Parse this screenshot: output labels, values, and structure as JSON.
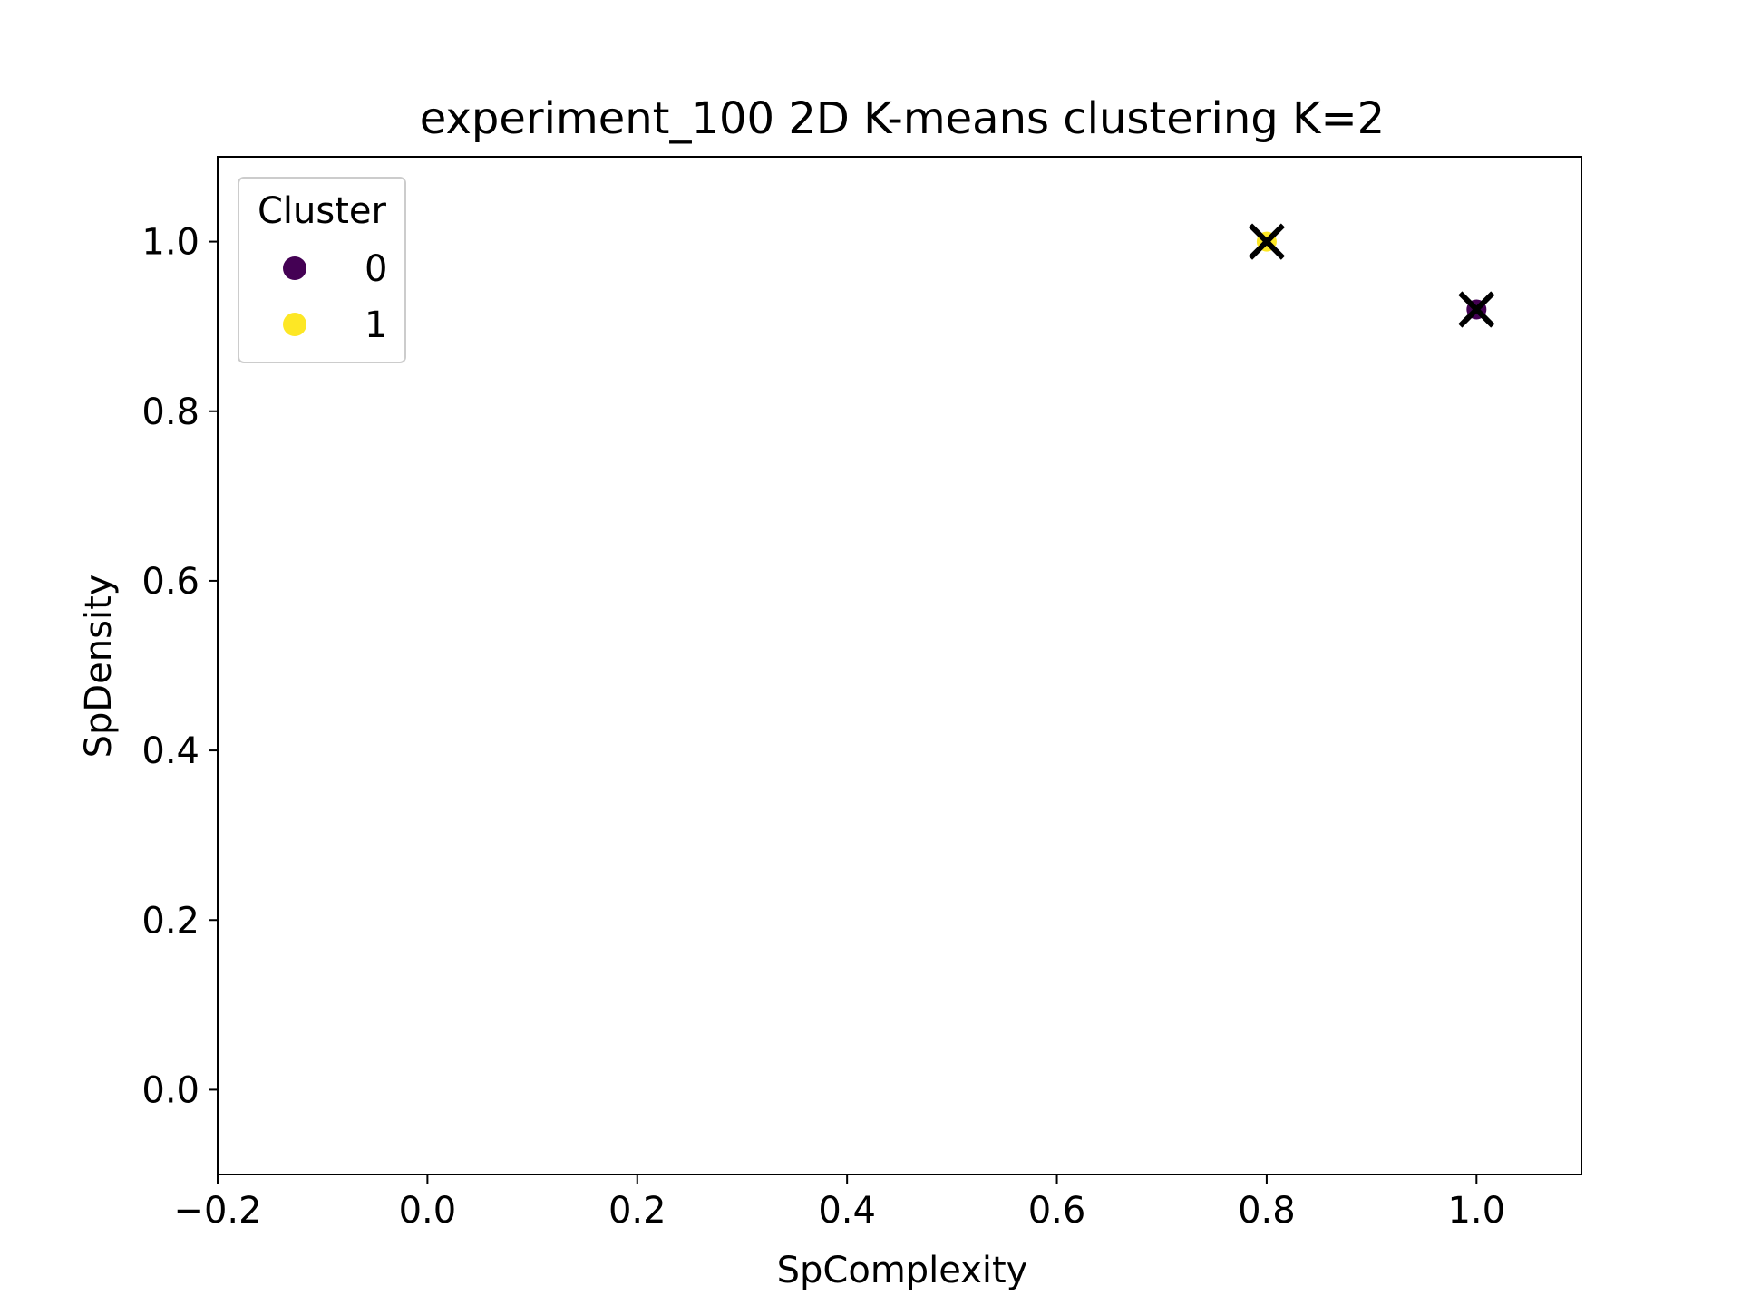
{
  "chart_data": {
    "type": "scatter",
    "title": "experiment_100 2D K-means clustering K=2",
    "xlabel": "SpComplexity",
    "ylabel": "SpDensity",
    "xlim": [
      -0.2,
      1.1
    ],
    "ylim": [
      -0.1,
      1.1
    ],
    "x_ticks": [
      {
        "value": -0.2,
        "label": "−0.2"
      },
      {
        "value": 0.0,
        "label": "0.0"
      },
      {
        "value": 0.2,
        "label": "0.2"
      },
      {
        "value": 0.4,
        "label": "0.4"
      },
      {
        "value": 0.6,
        "label": "0.6"
      },
      {
        "value": 0.8,
        "label": "0.8"
      },
      {
        "value": 1.0,
        "label": "1.0"
      }
    ],
    "y_ticks": [
      {
        "value": 0.0,
        "label": "0.0"
      },
      {
        "value": 0.2,
        "label": "0.2"
      },
      {
        "value": 0.4,
        "label": "0.4"
      },
      {
        "value": 0.6,
        "label": "0.6"
      },
      {
        "value": 0.8,
        "label": "0.8"
      },
      {
        "value": 1.0,
        "label": "1.0"
      }
    ],
    "grid": false,
    "legend": {
      "title": "Cluster",
      "placement": "top-left",
      "entries": [
        {
          "label": "0",
          "color": "#440154"
        },
        {
          "label": "1",
          "color": "#fde725"
        }
      ]
    },
    "series": [
      {
        "name": "0",
        "color": "#440154",
        "points": [
          {
            "x": 1.0,
            "y": 0.92
          }
        ]
      },
      {
        "name": "1",
        "color": "#fde725",
        "points": [
          {
            "x": 0.8,
            "y": 1.0
          }
        ]
      }
    ],
    "centroids": {
      "marker": "x",
      "color": "#000000",
      "points": [
        {
          "x": 1.0,
          "y": 0.92
        },
        {
          "x": 0.8,
          "y": 1.0
        }
      ]
    }
  }
}
